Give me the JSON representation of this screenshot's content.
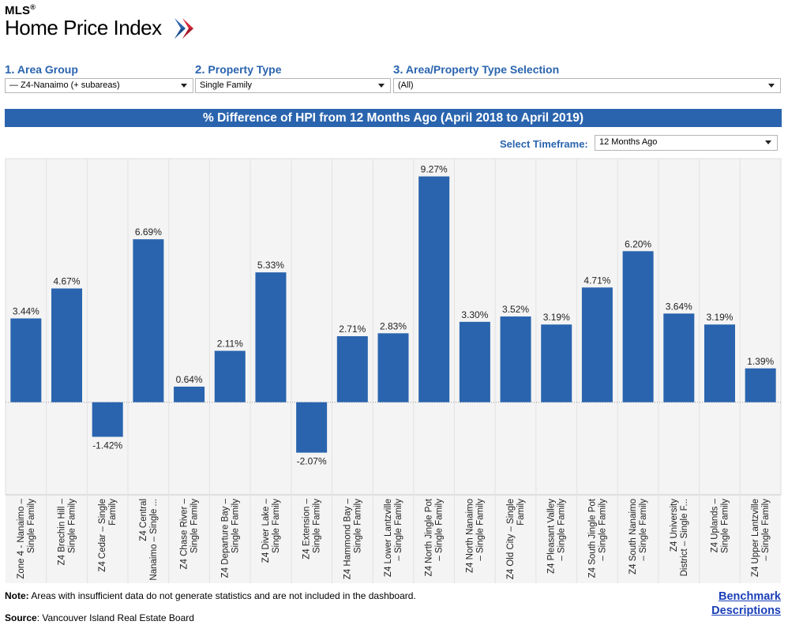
{
  "logo": {
    "mls": "MLS",
    "reg": "®",
    "title": "Home Price Index"
  },
  "filters": [
    {
      "num": "1.",
      "label": "Area Group",
      "value": "— Z4-Nanaimo (+ subareas)"
    },
    {
      "num": "2.",
      "label": "Property Type",
      "value": "Single Family"
    },
    {
      "num": "3.",
      "label": "Area/Property Type Selection",
      "value": "(All)"
    }
  ],
  "timeframe": {
    "label": "Select Timeframe:",
    "value": "12 Months Ago"
  },
  "colors": {
    "accent": "#2a64ae",
    "link": "#1a3fb8"
  },
  "chart_data": {
    "type": "bar",
    "title": "% Difference of HPI from 12 Months Ago (April 2018 to April 2019)",
    "xlabel": "",
    "ylabel": "",
    "ylim": [
      -3.8,
      10.0
    ],
    "categories": [
      [
        "Zone 4 - Nanaimo –",
        "Single Family"
      ],
      [
        "Z4 Brechin Hill –",
        "Single Family"
      ],
      [
        "Z4 Cedar – Single",
        "Family"
      ],
      [
        "Z4 Central",
        "Nanaimo – Single ..."
      ],
      [
        "Z4 Chase River –",
        "Single Family"
      ],
      [
        "Z4 Departure Bay –",
        "Single Family"
      ],
      [
        "Z4 Diver Lake –",
        "Single Family"
      ],
      [
        "Z4 Extension –",
        "Single Family"
      ],
      [
        "Z4 Hammond Bay –",
        "Single Family"
      ],
      [
        "Z4 Lower Lantzville",
        "– Single Family"
      ],
      [
        "Z4 North Jingle Pot",
        "– Single Family"
      ],
      [
        "Z4 North Nanaimo",
        "– Single Family"
      ],
      [
        "Z4 Old City – Single",
        "Family"
      ],
      [
        "Z4 Pleasant Valley",
        "– Single Family"
      ],
      [
        "Z4 South Jingle Pot",
        "– Single Family"
      ],
      [
        "Z4 South Nanaimo",
        "– Single Family"
      ],
      [
        "Z4 University",
        "District – Single F..."
      ],
      [
        "Z4 Uplands –",
        "Single Family"
      ],
      [
        "Z4 Upper Lantzville",
        "– Single Family"
      ]
    ],
    "values": [
      3.44,
      4.67,
      -1.42,
      6.69,
      0.64,
      2.11,
      5.33,
      -2.07,
      2.71,
      2.83,
      9.27,
      3.3,
      3.52,
      3.19,
      4.71,
      6.2,
      3.64,
      3.19,
      1.39
    ],
    "value_labels": [
      "3.44%",
      "4.67%",
      "-1.42%",
      "6.69%",
      "0.64%",
      "2.11%",
      "5.33%",
      "-2.07%",
      "2.71%",
      "2.83%",
      "9.27%",
      "3.30%",
      "3.52%",
      "3.19%",
      "4.71%",
      "6.20%",
      "3.64%",
      "3.19%",
      "1.39%"
    ]
  },
  "footer": {
    "note_bold": "Note:",
    "note_text": " Areas with insufficient data do not generate statistics and are not included in the dashboard.",
    "source_bold": "Source",
    "source_text": ": Vancouver Island Real Estate Board",
    "benchmark_line1": "Benchmark",
    "benchmark_line2": "Descriptions"
  }
}
